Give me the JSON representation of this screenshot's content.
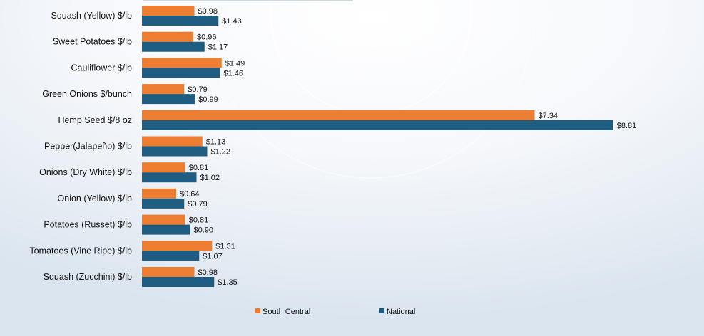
{
  "chart_data": {
    "type": "bar",
    "orientation": "horizontal",
    "title": "",
    "xlabel": "",
    "ylabel": "",
    "xlim": [
      0,
      9.5
    ],
    "grid": false,
    "legend_position": "bottom",
    "categories": [
      "Squash (Yellow) $/lb",
      "Sweet Potatoes $/lb",
      "Cauliflower $/lb",
      "Green Onions $/bunch",
      "Hemp Seed $/8 oz",
      "Pepper(Jalapeño) $/lb",
      "Onions (Dry White) $/lb",
      "Onion (Yellow) $/lb",
      "Potatoes (Russet) $/lb",
      "Tomatoes (Vine Ripe) $/lb",
      "Squash (Zucchini) $/lb"
    ],
    "series": [
      {
        "name": "South Central",
        "color": "#ED7D31",
        "values": [
          0.98,
          0.96,
          1.49,
          0.79,
          7.34,
          1.13,
          0.81,
          0.64,
          0.81,
          1.31,
          0.98
        ],
        "labels": [
          "$0.98",
          "$0.96",
          "$1.49",
          "$0.79",
          "$7.34",
          "$1.13",
          "$0.81",
          "$0.64",
          "$0.81",
          "$1.31",
          "$0.98"
        ]
      },
      {
        "name": "National",
        "color": "#1E5C82",
        "values": [
          1.43,
          1.17,
          1.46,
          0.99,
          8.81,
          1.22,
          1.02,
          0.79,
          0.9,
          1.07,
          1.35
        ],
        "labels": [
          "$1.43",
          "$1.17",
          "$1.46",
          "$0.99",
          "$8.81",
          "$1.22",
          "$1.02",
          "$0.79",
          "$0.90",
          "$1.07",
          "$1.35"
        ]
      }
    ]
  }
}
